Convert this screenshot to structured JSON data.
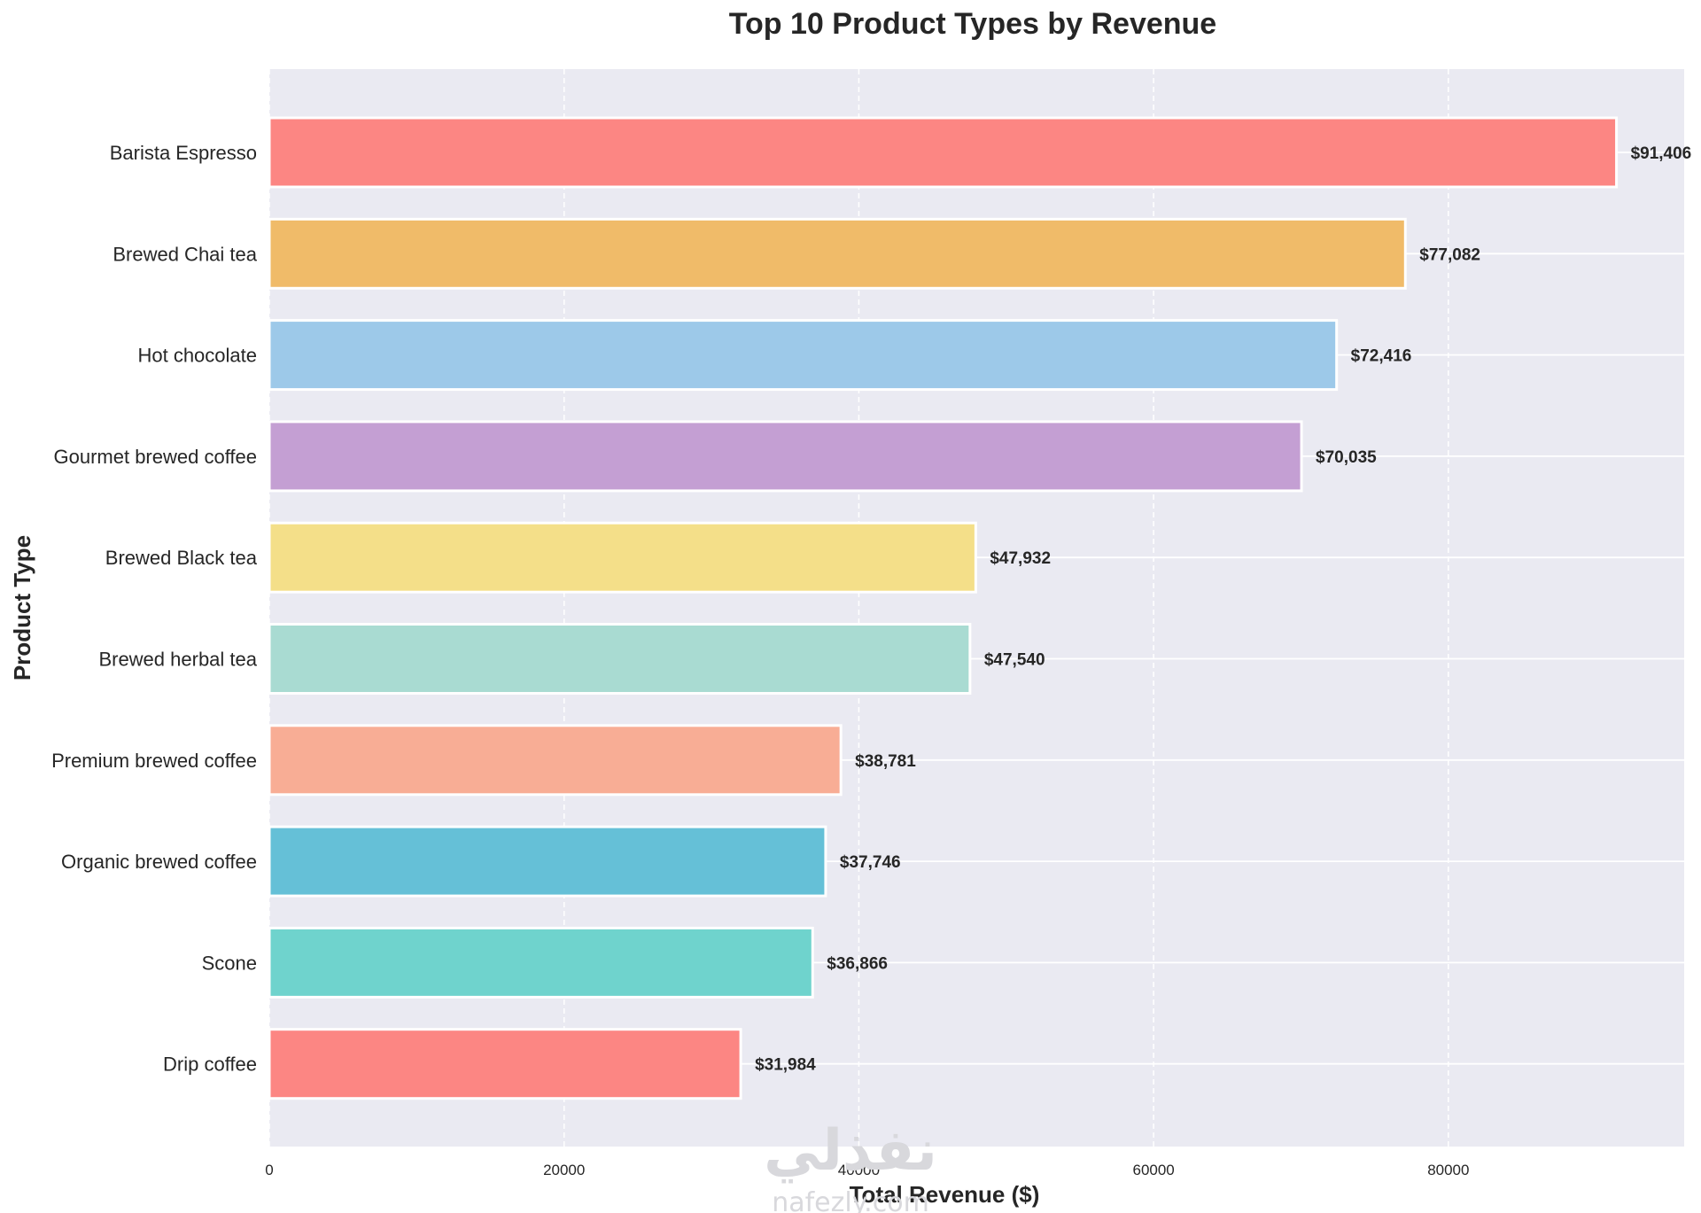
{
  "chart_data": {
    "type": "bar",
    "orientation": "horizontal",
    "title": "Top 10 Product Types by Revenue",
    "xlabel": "Total Revenue ($)",
    "ylabel": "Product Type",
    "categories": [
      "Barista Espresso",
      "Brewed Chai tea",
      "Hot chocolate",
      "Gourmet brewed coffee",
      "Brewed Black tea",
      "Brewed herbal tea",
      "Premium brewed coffee",
      "Organic brewed coffee",
      "Scone",
      "Drip coffee"
    ],
    "values": [
      91406,
      77082,
      72416,
      70035,
      47932,
      47540,
      38781,
      37746,
      36866,
      31984
    ],
    "value_labels": [
      "$91,406",
      "$77,082",
      "$72,416",
      "$70,035",
      "$47,932",
      "$47,540",
      "$38,781",
      "$37,746",
      "$36,866",
      "$31,984"
    ],
    "colors": [
      "#fc8683",
      "#f0bb69",
      "#9dc9e9",
      "#c49fd3",
      "#f4df89",
      "#a9dbd2",
      "#f8ad95",
      "#65c0d7",
      "#6fd3cd",
      "#fc8683"
    ],
    "xlim": [
      0,
      96000
    ],
    "xticks": [
      0,
      20000,
      40000,
      60000,
      80000
    ],
    "xtick_labels": [
      "0",
      "20000",
      "40000",
      "60000",
      "80000"
    ],
    "grid": true,
    "background": "#eaeaf2"
  },
  "watermark": {
    "arabic": "نفذلي",
    "latin": "nafezly.com"
  }
}
